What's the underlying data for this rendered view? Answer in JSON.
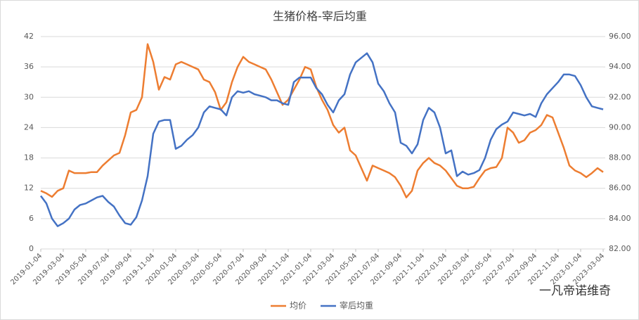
{
  "chart_data": {
    "type": "line",
    "title": "生猪价格-宰后均重",
    "categories": [
      "2019-01-04",
      null,
      null,
      null,
      "2019-03-04",
      null,
      null,
      null,
      "2019-05-04",
      null,
      null,
      null,
      "2019-07-04",
      null,
      null,
      null,
      "2019-09-04",
      null,
      null,
      null,
      "2019-11-04",
      null,
      null,
      null,
      "2020-01-04",
      null,
      null,
      null,
      "2020-03-04",
      null,
      null,
      null,
      "2020-05-04",
      null,
      null,
      null,
      "2020-07-04",
      null,
      null,
      null,
      "2020-09-04",
      null,
      null,
      null,
      "2020-11-04",
      null,
      null,
      null,
      "2021-01-04",
      null,
      null,
      null,
      "2021-03-04",
      null,
      null,
      null,
      "2021-05-04",
      null,
      null,
      null,
      "2021-07-04",
      null,
      null,
      null,
      "2021-09-04",
      null,
      null,
      null,
      "2021-11-04",
      null,
      null,
      null,
      "2022-01-04",
      null,
      null,
      null,
      "2022-03-04",
      null,
      null,
      null,
      "2022-05-04",
      null,
      null,
      null,
      "2022-07-04",
      null,
      null,
      null,
      "2022-09-04",
      null,
      null,
      null,
      "2022-11-04",
      null,
      null,
      null,
      "2023-01-04",
      null,
      null,
      null,
      "2023-03-04"
    ],
    "series": [
      {
        "name": "均价",
        "color": "#ed7d31",
        "values": [
          11.5,
          11,
          10.3,
          11.5,
          12,
          15.5,
          15,
          15,
          15,
          15.2,
          15.2,
          16.5,
          17.5,
          18.5,
          19,
          22.5,
          27,
          27.5,
          30,
          40.5,
          37,
          31.5,
          34,
          33.5,
          36.5,
          37,
          36.5,
          36,
          35.5,
          33.5,
          33,
          31,
          27.5,
          29,
          33,
          36,
          38,
          37,
          36.5,
          36,
          35.5,
          33.5,
          31,
          28.5,
          29.5,
          31.5,
          33.5,
          36,
          35.5,
          32,
          29.5,
          27.5,
          24.5,
          23,
          24,
          19.5,
          18.5,
          16,
          13.5,
          16.5,
          16,
          15.5,
          15,
          14.2,
          12.5,
          10.2,
          11.5,
          15.5,
          17,
          18,
          17,
          16.5,
          15.5,
          14,
          12.5,
          12,
          12,
          12.3,
          14,
          15.5,
          16,
          16.2,
          18,
          24,
          23,
          21,
          21.5,
          23,
          23.5,
          24.5,
          26.5,
          26,
          23,
          20,
          16.5,
          15.5,
          15,
          14.2,
          15,
          16,
          15.2
        ]
      },
      {
        "name": "宰后均重",
        "color": "#4472c4",
        "axis": "y2",
        "values": [
          85.5,
          85,
          84,
          83.5,
          83.7,
          84,
          84.6,
          84.9,
          85,
          85.2,
          85.4,
          85.5,
          85.1,
          84.8,
          84.2,
          83.7,
          83.6,
          84.1,
          85.2,
          86.8,
          89.6,
          90.4,
          90.5,
          90.5,
          88.6,
          88.8,
          89.2,
          89.5,
          90,
          91,
          91.4,
          91.3,
          91.2,
          90.8,
          92,
          92.4,
          92.3,
          92.4,
          92.2,
          92.1,
          92,
          91.8,
          91.8,
          91.6,
          91.5,
          93,
          93.3,
          93.3,
          93.3,
          92.6,
          92.2,
          91.5,
          91,
          91.8,
          92.2,
          93.5,
          94.3,
          94.6,
          94.9,
          94.3,
          92.9,
          92.4,
          91.6,
          91,
          89,
          88.8,
          88.3,
          88.9,
          90.5,
          91.3,
          91,
          90,
          88.3,
          88.5,
          86.8,
          87.1,
          86.9,
          87,
          87.2,
          88,
          89.2,
          89.9,
          90.2,
          90.4,
          91,
          90.9,
          90.8,
          90.9,
          90.7,
          91.6,
          92.2,
          92.6,
          93,
          93.5,
          93.5,
          93.4,
          92.8,
          92,
          91.4,
          91.3,
          91.2
        ]
      }
    ],
    "ylim": [
      0,
      42
    ],
    "yticks": [
      0,
      6,
      12,
      18,
      24,
      30,
      36,
      42
    ],
    "y2lim": [
      82,
      96
    ],
    "y2ticks": [
      {
        "value": 82,
        "label": "82.00"
      },
      {
        "value": 84,
        "label": "84.00"
      },
      {
        "value": 86,
        "label": "86.00"
      },
      {
        "value": 88,
        "label": "88.00"
      },
      {
        "value": 90,
        "label": "90.00"
      },
      {
        "value": 92,
        "label": "92.00"
      },
      {
        "value": 94,
        "label": "94.00"
      },
      {
        "value": 96,
        "label": "96.00"
      }
    ],
    "grid": true,
    "legend": "bottom",
    "watermark": "一凡帝诺维奇"
  }
}
